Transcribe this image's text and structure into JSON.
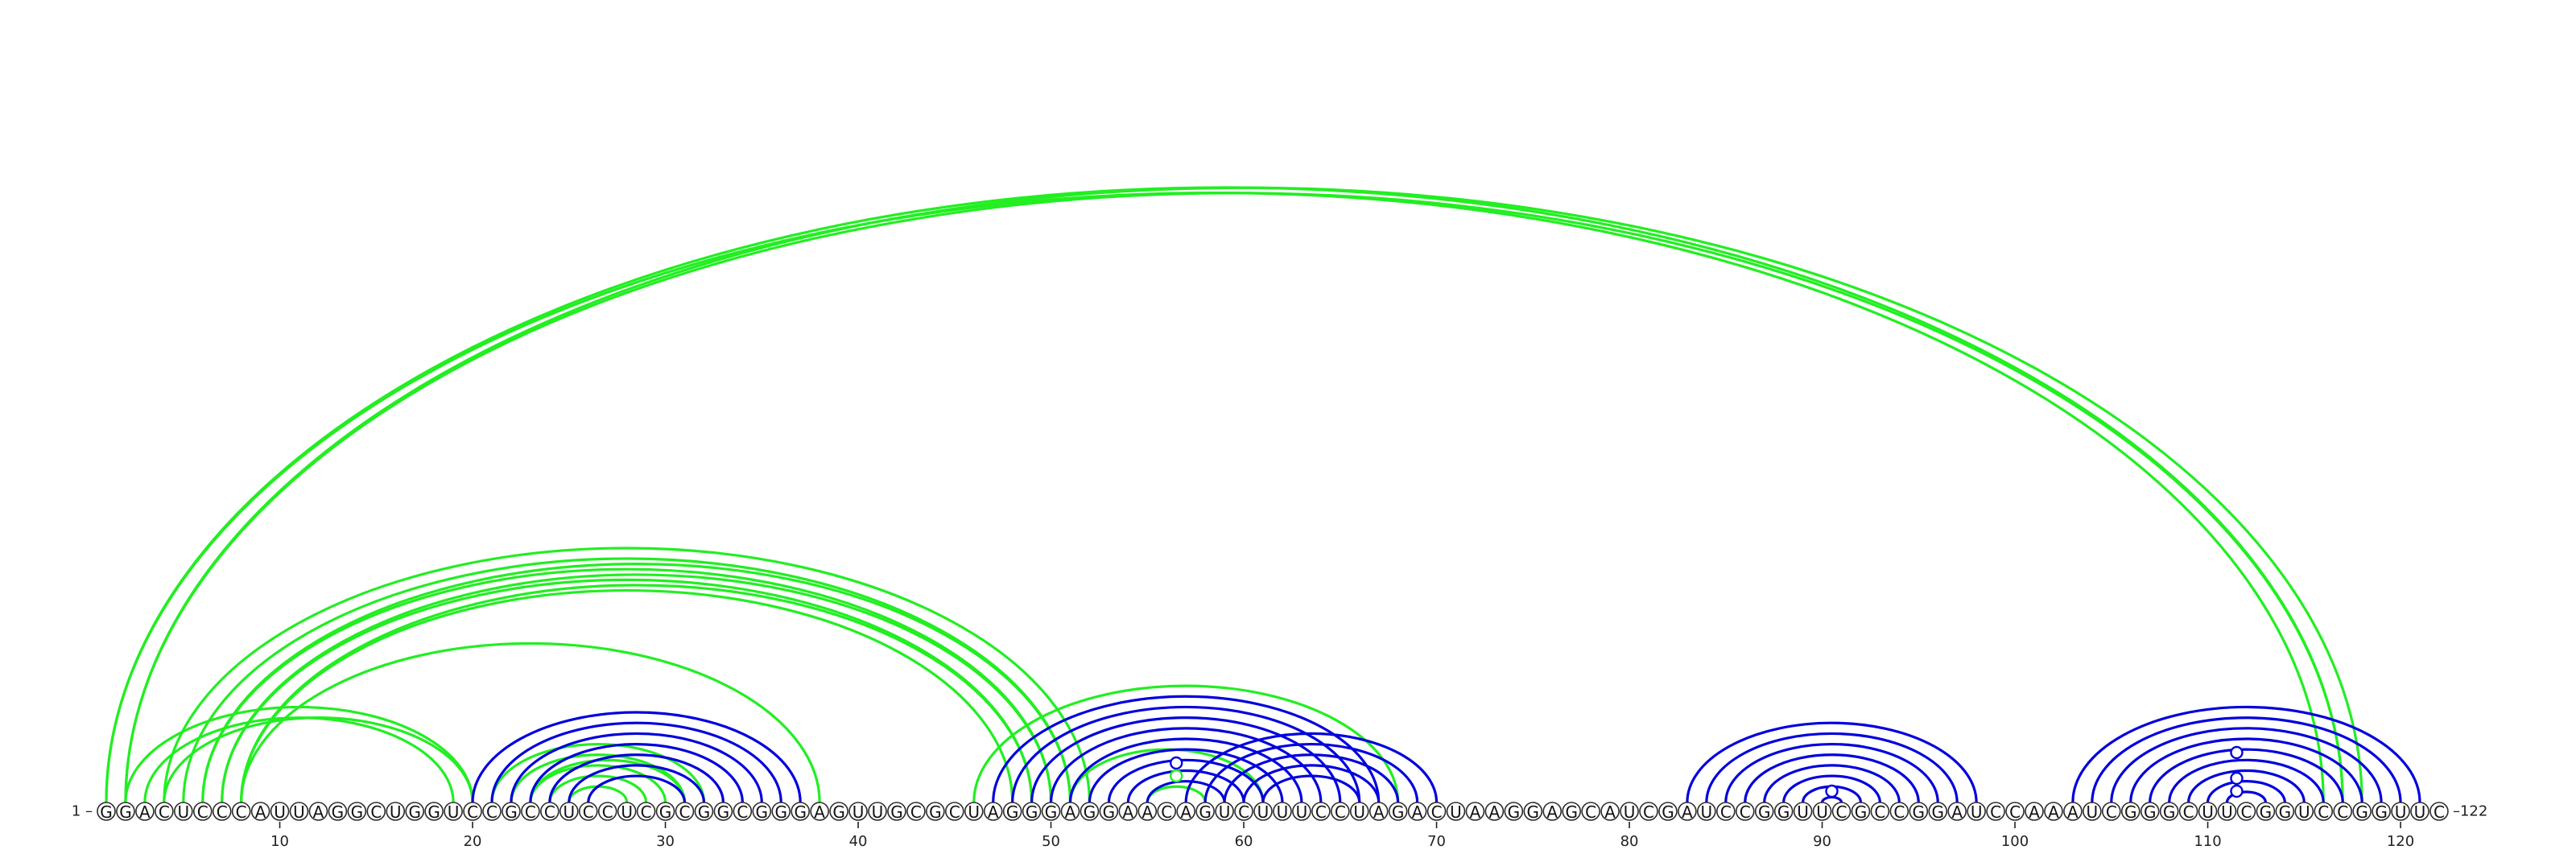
{
  "sequence": "GGACUCCCAUUAGGCUGGUCCGCCUCCUCGCGGCGGGAGUUGCGCUAGGGAGGAACAGUCUUUCCUAGACUAAGGAGCAUCGAUCCGGUUCGCCGGAUCCAAAUCGGGCUUCGGUCCGGUUC",
  "start_label": "1 –",
  "end_label": "–122",
  "ticks": [
    10,
    20,
    30,
    40,
    50,
    60,
    70,
    80,
    90,
    100,
    110,
    120
  ],
  "colors": {
    "green": "#22ee22",
    "blue": "#0000dd",
    "nucleotide_stroke": "#2b2b2b"
  },
  "pair_sets": [
    {
      "color": "green",
      "pairs": [
        [
          1,
          116
        ],
        [
          1,
          117
        ],
        [
          2,
          117
        ],
        [
          2,
          118
        ]
      ]
    },
    {
      "color": "green",
      "pairs": [
        [
          4,
          52
        ],
        [
          5,
          51
        ],
        [
          6,
          50
        ],
        [
          6,
          51
        ],
        [
          7,
          49
        ],
        [
          7,
          50
        ],
        [
          8,
          48
        ],
        [
          8,
          49
        ]
      ]
    },
    {
      "color": "green",
      "pairs": [
        [
          2,
          20
        ],
        [
          3,
          19
        ],
        [
          4,
          20
        ]
      ]
    },
    {
      "color": "green",
      "pairs": [
        [
          8,
          38
        ]
      ]
    },
    {
      "color": "green",
      "pairs": [
        [
          21,
          32
        ],
        [
          22,
          31
        ],
        [
          23,
          31
        ],
        [
          23,
          30
        ],
        [
          24,
          29
        ],
        [
          25,
          28
        ]
      ]
    },
    {
      "color": "blue",
      "pairs": [
        [
          20,
          37
        ],
        [
          21,
          36
        ],
        [
          22,
          35
        ],
        [
          23,
          34
        ],
        [
          24,
          33
        ],
        [
          25,
          32
        ],
        [
          26,
          31
        ]
      ]
    },
    {
      "color": "green",
      "pairs": [
        [
          46,
          68
        ],
        [
          51,
          61
        ],
        [
          55,
          58
        ]
      ]
    },
    {
      "color": "blue",
      "pairs": [
        [
          47,
          67
        ],
        [
          48,
          66
        ],
        [
          49,
          65
        ],
        [
          50,
          64
        ],
        [
          51,
          63
        ],
        [
          52,
          62
        ],
        [
          53,
          61
        ],
        [
          54,
          60
        ],
        [
          55,
          59
        ]
      ]
    },
    {
      "color": "blue",
      "pairs": [
        [
          57,
          70
        ],
        [
          58,
          69
        ],
        [
          59,
          68
        ],
        [
          60,
          67
        ],
        [
          61,
          66
        ]
      ]
    },
    {
      "color": "blue",
      "pairs": [
        [
          83,
          98
        ],
        [
          84,
          97
        ],
        [
          85,
          96
        ],
        [
          86,
          95
        ],
        [
          87,
          94
        ],
        [
          88,
          93
        ],
        [
          89,
          92
        ],
        [
          90,
          91
        ]
      ]
    },
    {
      "color": "blue",
      "pairs": [
        [
          103,
          121
        ],
        [
          104,
          120
        ],
        [
          105,
          119
        ],
        [
          106,
          118
        ],
        [
          107,
          117
        ],
        [
          108,
          116
        ],
        [
          109,
          115
        ],
        [
          110,
          114
        ],
        [
          111,
          113
        ]
      ]
    }
  ],
  "loop_marks": [
    {
      "color": "blue",
      "x": 56.5,
      "y": 49
    },
    {
      "color": "green",
      "x": 56.5,
      "y": 33
    },
    {
      "color": "blue",
      "x": 90.5,
      "y": 14
    },
    {
      "color": "blue",
      "x": 111.5,
      "y": 62
    },
    {
      "color": "blue",
      "x": 111.5,
      "y": 30
    },
    {
      "color": "blue",
      "x": 111.5,
      "y": 14
    }
  ]
}
